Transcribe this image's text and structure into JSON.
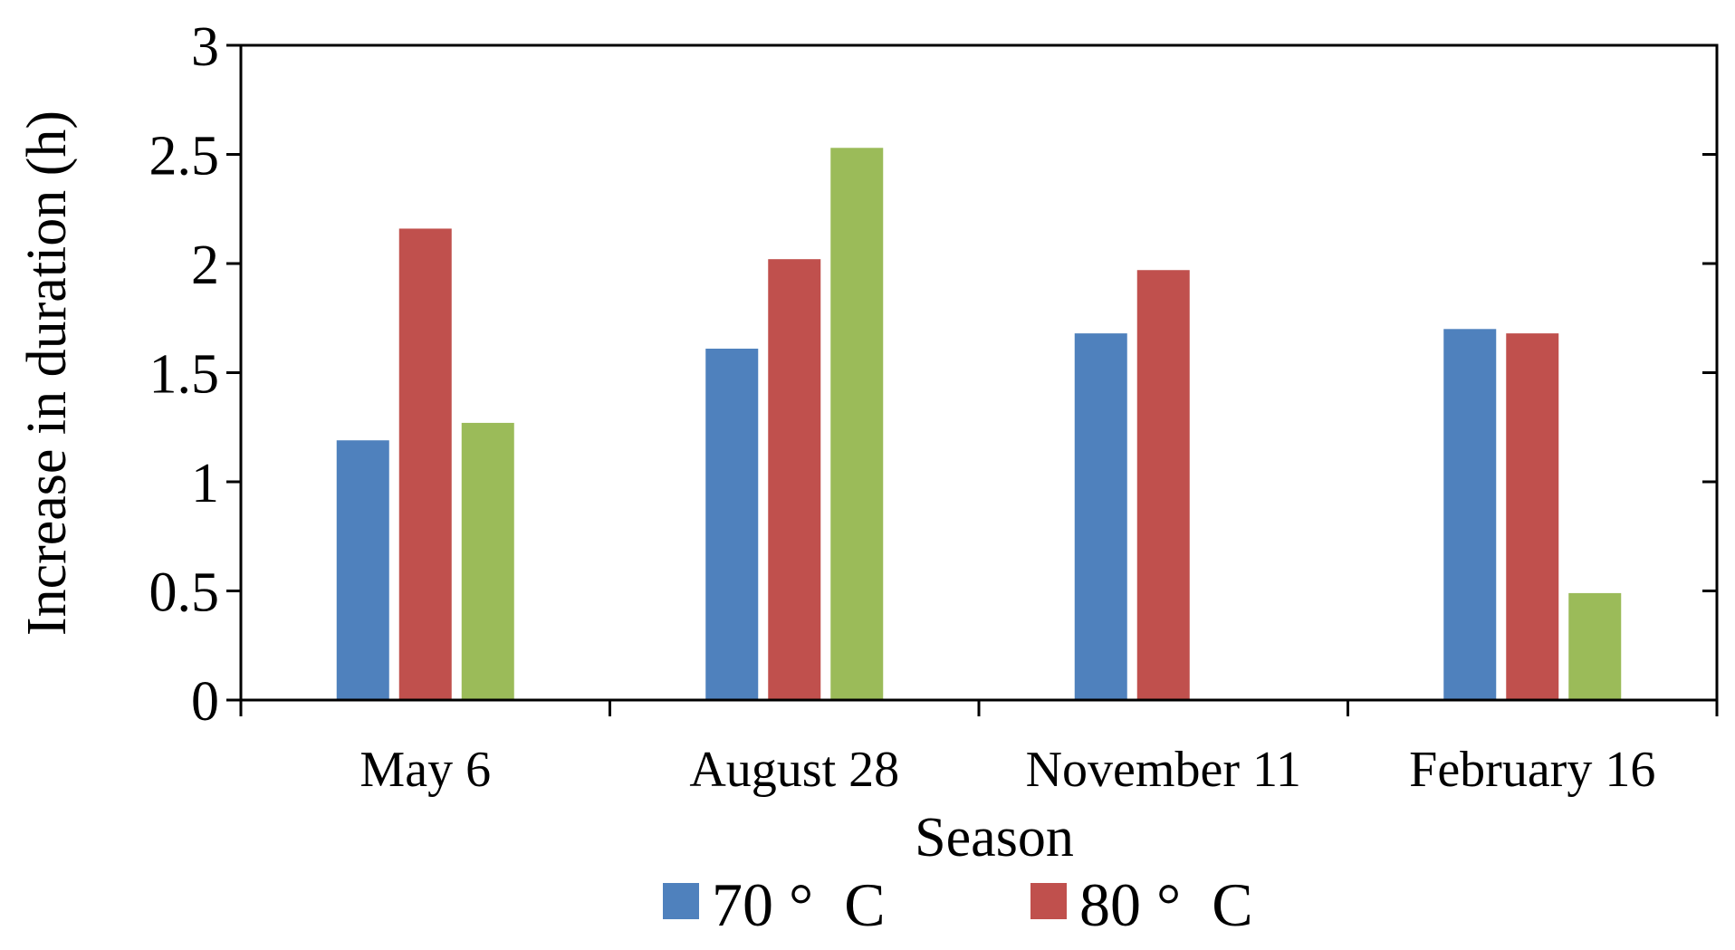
{
  "chart_data": {
    "type": "bar",
    "title": "",
    "xlabel": "Season",
    "ylabel": "Increase in duration (h)",
    "categories": [
      "May 6",
      "August 28",
      "November 11",
      "February 16"
    ],
    "ylim": [
      0,
      3
    ],
    "yticks": [
      0,
      0.5,
      1,
      1.5,
      2,
      2.5,
      3
    ],
    "ytick_labels": [
      "0",
      "0.5",
      "1",
      "1.5",
      "2",
      "2.5",
      "3"
    ],
    "grid": false,
    "legend_position": "bottom",
    "series": [
      {
        "name": "70 °  C",
        "color": "#4F81BD",
        "values": [
          1.19,
          1.61,
          1.68,
          1.7
        ]
      },
      {
        "name": "80 °  C",
        "color": "#C0504D",
        "values": [
          2.16,
          2.02,
          1.97,
          1.68
        ]
      },
      {
        "name": "",
        "color": "#9BBB59",
        "values": [
          1.27,
          2.53,
          null,
          0.49
        ]
      }
    ],
    "legend": [
      {
        "label": "70 °  C",
        "color": "#4F81BD"
      },
      {
        "label": "80 °  C",
        "color": "#C0504D"
      }
    ]
  }
}
